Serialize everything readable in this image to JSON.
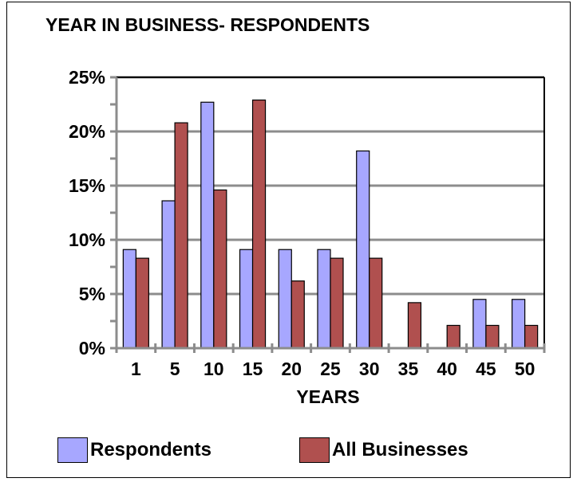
{
  "chart_data": {
    "type": "bar",
    "title": "YEAR IN BUSINESS- RESPONDENTS",
    "xlabel": "YEARS",
    "ylabel": "",
    "categories": [
      "1",
      "5",
      "10",
      "15",
      "20",
      "25",
      "30",
      "35",
      "40",
      "45",
      "50"
    ],
    "series": [
      {
        "name": "Respondents",
        "color": "#a7a7ff",
        "values": [
          9.1,
          13.6,
          22.7,
          9.1,
          9.1,
          9.1,
          18.2,
          0,
          0,
          4.5,
          4.5
        ]
      },
      {
        "name": "All Businesses",
        "color": "#b0504f",
        "values": [
          8.3,
          20.8,
          14.6,
          22.9,
          6.2,
          8.3,
          8.3,
          4.2,
          2.1,
          2.1,
          2.1
        ]
      }
    ],
    "ylim": [
      0,
      25
    ],
    "yticks": [
      "0%",
      "5%",
      "10%",
      "15%",
      "20%",
      "25%"
    ],
    "grid": true,
    "legend_position": "bottom"
  }
}
